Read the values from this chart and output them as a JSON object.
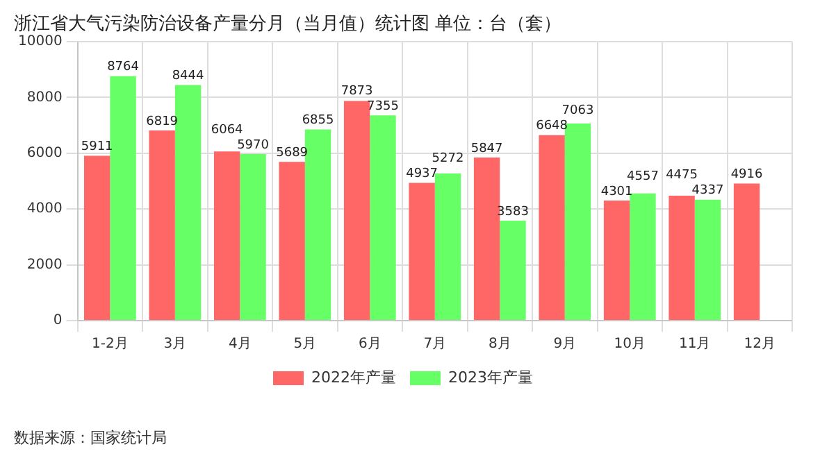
{
  "chart_data": {
    "type": "bar",
    "title": "浙江省大气污染防治设备产量分月（当月值）统计图 单位：台（套）",
    "categories": [
      "1-2月",
      "3月",
      "4月",
      "5月",
      "6月",
      "7月",
      "8月",
      "9月",
      "10月",
      "11月",
      "12月"
    ],
    "series": [
      {
        "name": "2022年产量",
        "color": "#ff6666",
        "values": [
          5911,
          6819,
          6064,
          5689,
          7873,
          4937,
          5847,
          6648,
          4301,
          4475,
          4916
        ]
      },
      {
        "name": "2023年产量",
        "color": "#66ff66",
        "values": [
          8764,
          8444,
          5970,
          6855,
          7355,
          5272,
          3583,
          7063,
          4557,
          4337,
          null
        ]
      }
    ],
    "ylim": [
      0,
      10000
    ],
    "yticks": [
      0,
      2000,
      4000,
      6000,
      8000,
      10000
    ],
    "grid": true,
    "legend": "bottom",
    "data_labels": true,
    "annotations": [
      "数据来源：国家统计局"
    ]
  }
}
